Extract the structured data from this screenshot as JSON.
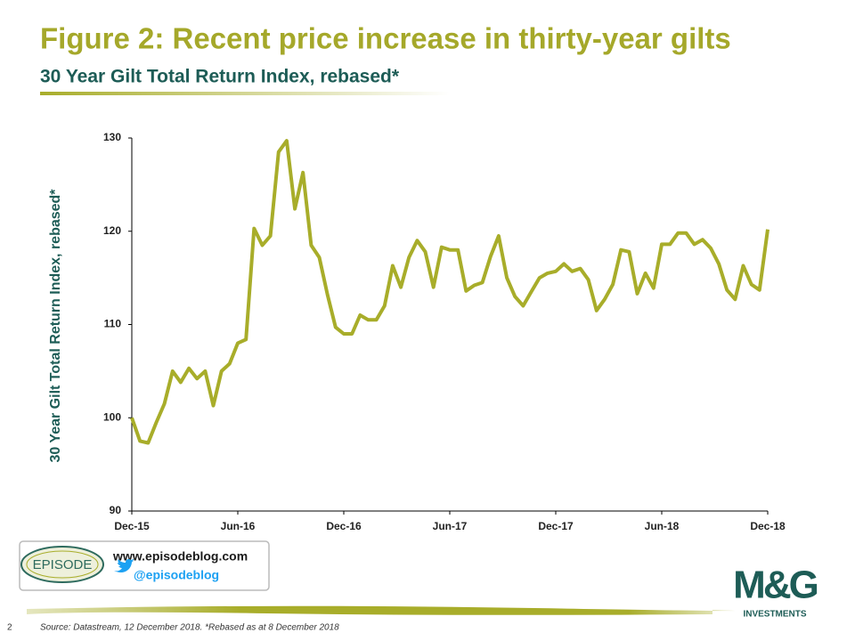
{
  "chart_data": {
    "type": "line",
    "title": "Figure 2: Recent price increase in thirty-year gilts",
    "subtitle": "30 Year Gilt Total Return Index, rebased*",
    "y_label": "30 Year Gilt Total Return Index, rebased*",
    "categories": [
      "Dec-15",
      null,
      null,
      null,
      null,
      null,
      null,
      null,
      null,
      null,
      null,
      null,
      null,
      "Jun-16",
      null,
      null,
      null,
      null,
      null,
      null,
      null,
      null,
      null,
      null,
      null,
      null,
      "Dec-16",
      null,
      null,
      null,
      null,
      null,
      null,
      null,
      null,
      null,
      null,
      null,
      null,
      "Jun-17",
      null,
      null,
      null,
      null,
      null,
      null,
      null,
      null,
      null,
      null,
      null,
      null,
      "Dec-17",
      null,
      null,
      null,
      null,
      null,
      null,
      null,
      null,
      null,
      null,
      null,
      null,
      "Jun-18",
      null,
      null,
      null,
      null,
      null,
      null,
      null,
      null,
      null,
      null,
      null,
      null,
      "Dec-18"
    ],
    "series": [
      {
        "name": "30 Year Gilt Total Return Index",
        "color": "#a8ad2a",
        "values": [
          100,
          97.5,
          97.3,
          99.5,
          101.5,
          105,
          103.8,
          105.3,
          104.2,
          105,
          101.3,
          105,
          105.8,
          108,
          108.4,
          120.3,
          118.5,
          119.5,
          128.5,
          129.7,
          122.4,
          126.3,
          118.5,
          117.2,
          113.2,
          109.7,
          109,
          109,
          111,
          110.5,
          110.5,
          112,
          116.3,
          114,
          117.2,
          119,
          117.8,
          114,
          118.3,
          118,
          118,
          113.6,
          114.2,
          114.5,
          117.3,
          119.5,
          115,
          113,
          112,
          113.5,
          115,
          115.5,
          115.7,
          116.5,
          115.7,
          116,
          114.8,
          111.5,
          112.7,
          114.3,
          118,
          117.8,
          113.3,
          115.5,
          113.9,
          118.6,
          118.6,
          119.8,
          119.8,
          118.6,
          119.1,
          118.2,
          116.5,
          113.7,
          112.7,
          116.3,
          114.3,
          113.7,
          120.2
        ]
      }
    ],
    "ylim": [
      90,
      130
    ],
    "yticks": [
      90,
      100,
      110,
      120,
      130
    ],
    "grid": false,
    "website": "www.episodeblog.com",
    "twitter": "@episodeblog",
    "logo_text": "EPISODE",
    "brand": "M&G",
    "brand_sub": "INVESTMENTS",
    "page_number": "2",
    "source": "Source: Datastream, 12 December 2018. *Rebased as at 8 December 2018"
  }
}
